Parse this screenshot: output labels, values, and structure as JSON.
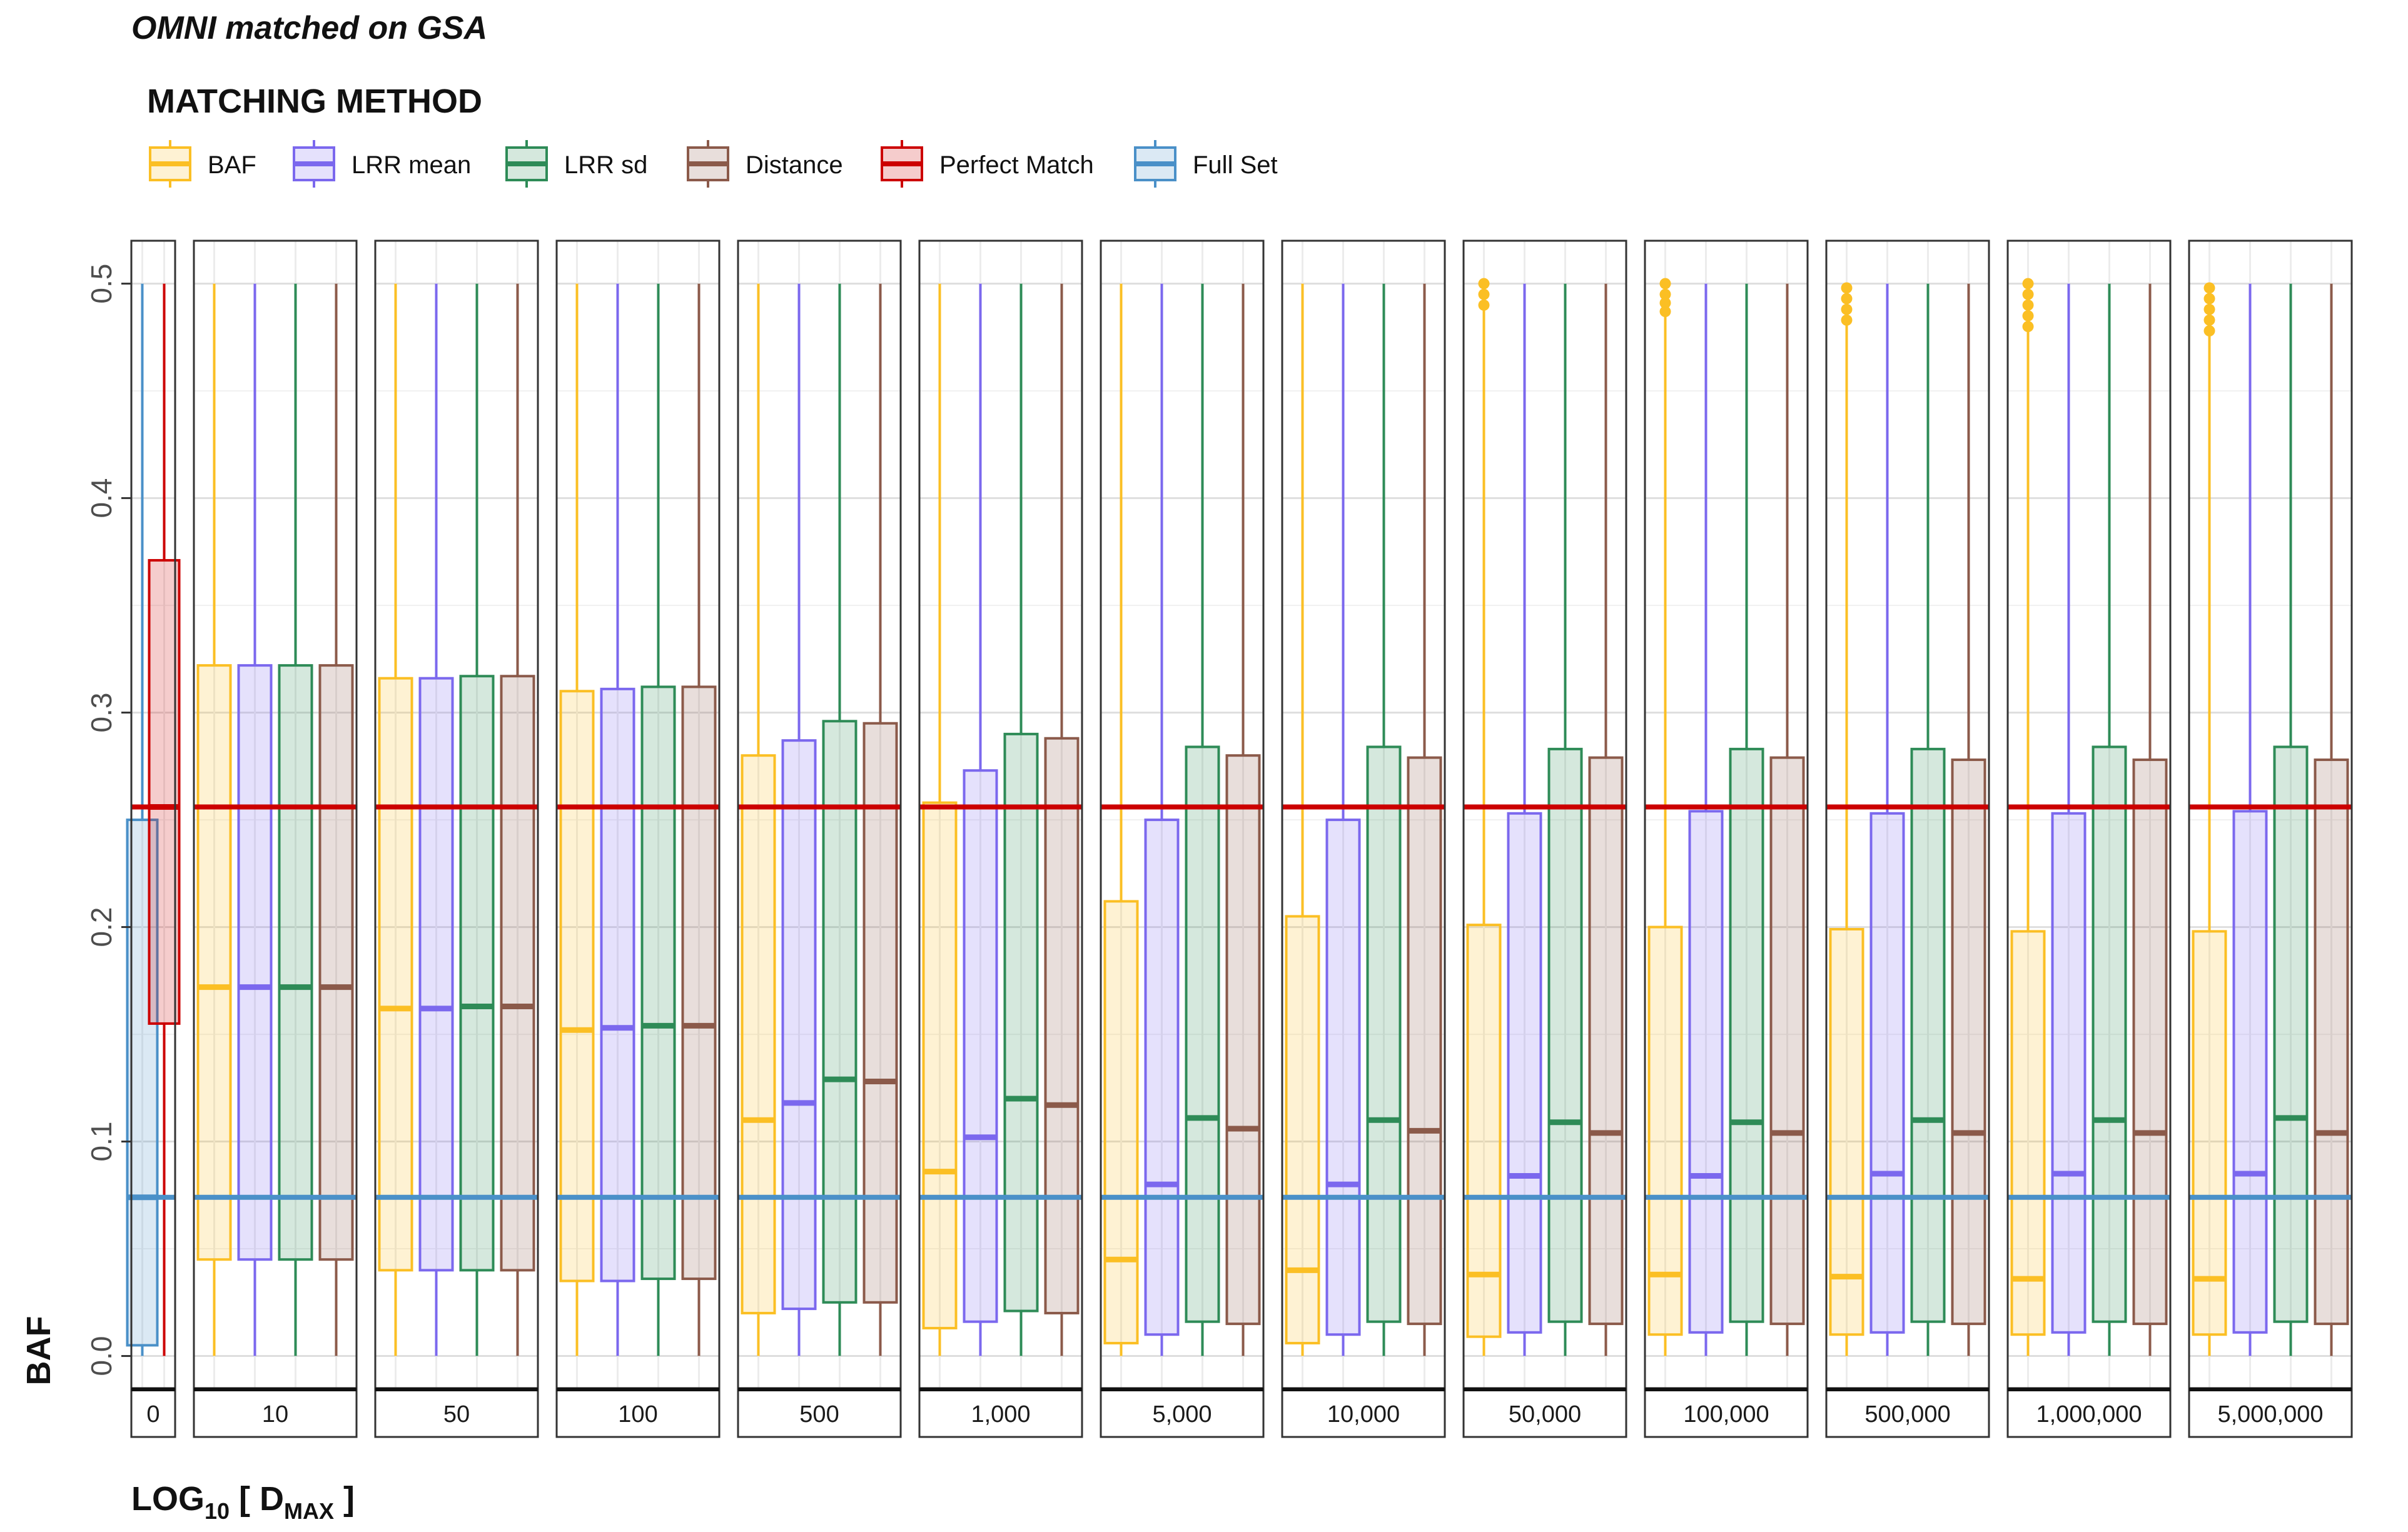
{
  "chart_data": {
    "type": "boxplot",
    "title": "OMNI matched on GSA",
    "legend": {
      "title": "MATCHING METHOD",
      "placement": "top-left",
      "items": [
        {
          "name": "BAF",
          "color": "#FBBF24"
        },
        {
          "name": "LRR mean",
          "color": "#7B68EE"
        },
        {
          "name": "LRR sd",
          "color": "#2E8B57"
        },
        {
          "name": "Distance",
          "color": "#8B5A4A"
        },
        {
          "name": "Perfect Match",
          "color": "#CC0000"
        },
        {
          "name": "Full Set",
          "color": "#4A90C8"
        }
      ]
    },
    "ylabel": "BAF",
    "xlabel": {
      "base": "LOG",
      "sub1": "10",
      "mid": " [ D",
      "sub2": "MAX",
      "end": " ]"
    },
    "ylim": [
      -0.015,
      0.52
    ],
    "yticks": [
      0.0,
      0.1,
      0.2,
      0.3,
      0.4,
      0.5
    ],
    "ytick_labels": [
      "0.0",
      "0.1",
      "0.2",
      "0.3",
      "0.4",
      "0.5"
    ],
    "grid": true,
    "reference_lines": [
      {
        "name": "Perfect Match",
        "y": 0.256,
        "color": "#CC0000"
      },
      {
        "name": "Full Set",
        "y": 0.074,
        "color": "#4A90C8"
      }
    ],
    "panels": [
      {
        "label": "0",
        "boxes": [
          {
            "series": "Full Set",
            "min": 0.0,
            "q1": 0.005,
            "median": 0.074,
            "q3": 0.25,
            "max": 0.5,
            "outliers": []
          },
          {
            "series": "Perfect Match",
            "min": 0.0,
            "q1": 0.155,
            "median": 0.256,
            "q3": 0.371,
            "max": 0.5,
            "outliers": []
          }
        ]
      },
      {
        "label": "10",
        "boxes": [
          {
            "series": "BAF",
            "min": 0.0,
            "q1": 0.045,
            "median": 0.172,
            "q3": 0.322,
            "max": 0.5,
            "outliers": []
          },
          {
            "series": "LRR mean",
            "min": 0.0,
            "q1": 0.045,
            "median": 0.172,
            "q3": 0.322,
            "max": 0.5,
            "outliers": []
          },
          {
            "series": "LRR sd",
            "min": 0.0,
            "q1": 0.045,
            "median": 0.172,
            "q3": 0.322,
            "max": 0.5,
            "outliers": []
          },
          {
            "series": "Distance",
            "min": 0.0,
            "q1": 0.045,
            "median": 0.172,
            "q3": 0.322,
            "max": 0.5,
            "outliers": []
          }
        ]
      },
      {
        "label": "50",
        "boxes": [
          {
            "series": "BAF",
            "min": 0.0,
            "q1": 0.04,
            "median": 0.162,
            "q3": 0.316,
            "max": 0.5,
            "outliers": []
          },
          {
            "series": "LRR mean",
            "min": 0.0,
            "q1": 0.04,
            "median": 0.162,
            "q3": 0.316,
            "max": 0.5,
            "outliers": []
          },
          {
            "series": "LRR sd",
            "min": 0.0,
            "q1": 0.04,
            "median": 0.163,
            "q3": 0.317,
            "max": 0.5,
            "outliers": []
          },
          {
            "series": "Distance",
            "min": 0.0,
            "q1": 0.04,
            "median": 0.163,
            "q3": 0.317,
            "max": 0.5,
            "outliers": []
          }
        ]
      },
      {
        "label": "100",
        "boxes": [
          {
            "series": "BAF",
            "min": 0.0,
            "q1": 0.035,
            "median": 0.152,
            "q3": 0.31,
            "max": 0.5,
            "outliers": []
          },
          {
            "series": "LRR mean",
            "min": 0.0,
            "q1": 0.035,
            "median": 0.153,
            "q3": 0.311,
            "max": 0.5,
            "outliers": []
          },
          {
            "series": "LRR sd",
            "min": 0.0,
            "q1": 0.036,
            "median": 0.154,
            "q3": 0.312,
            "max": 0.5,
            "outliers": []
          },
          {
            "series": "Distance",
            "min": 0.0,
            "q1": 0.036,
            "median": 0.154,
            "q3": 0.312,
            "max": 0.5,
            "outliers": []
          }
        ]
      },
      {
        "label": "500",
        "boxes": [
          {
            "series": "BAF",
            "min": 0.0,
            "q1": 0.02,
            "median": 0.11,
            "q3": 0.28,
            "max": 0.5,
            "outliers": []
          },
          {
            "series": "LRR mean",
            "min": 0.0,
            "q1": 0.022,
            "median": 0.118,
            "q3": 0.287,
            "max": 0.5,
            "outliers": []
          },
          {
            "series": "LRR sd",
            "min": 0.0,
            "q1": 0.025,
            "median": 0.129,
            "q3": 0.296,
            "max": 0.5,
            "outliers": []
          },
          {
            "series": "Distance",
            "min": 0.0,
            "q1": 0.025,
            "median": 0.128,
            "q3": 0.295,
            "max": 0.5,
            "outliers": []
          }
        ]
      },
      {
        "label": "1,000",
        "boxes": [
          {
            "series": "BAF",
            "min": 0.0,
            "q1": 0.013,
            "median": 0.086,
            "q3": 0.258,
            "max": 0.5,
            "outliers": []
          },
          {
            "series": "LRR mean",
            "min": 0.0,
            "q1": 0.016,
            "median": 0.102,
            "q3": 0.273,
            "max": 0.5,
            "outliers": []
          },
          {
            "series": "LRR sd",
            "min": 0.0,
            "q1": 0.021,
            "median": 0.12,
            "q3": 0.29,
            "max": 0.5,
            "outliers": []
          },
          {
            "series": "Distance",
            "min": 0.0,
            "q1": 0.02,
            "median": 0.117,
            "q3": 0.288,
            "max": 0.5,
            "outliers": []
          }
        ]
      },
      {
        "label": "5,000",
        "boxes": [
          {
            "series": "BAF",
            "min": 0.0,
            "q1": 0.006,
            "median": 0.045,
            "q3": 0.212,
            "max": 0.5,
            "outliers": []
          },
          {
            "series": "LRR mean",
            "min": 0.0,
            "q1": 0.01,
            "median": 0.08,
            "q3": 0.25,
            "max": 0.5,
            "outliers": []
          },
          {
            "series": "LRR sd",
            "min": 0.0,
            "q1": 0.016,
            "median": 0.111,
            "q3": 0.284,
            "max": 0.5,
            "outliers": []
          },
          {
            "series": "Distance",
            "min": 0.0,
            "q1": 0.015,
            "median": 0.106,
            "q3": 0.28,
            "max": 0.5,
            "outliers": []
          }
        ]
      },
      {
        "label": "10,000",
        "boxes": [
          {
            "series": "BAF",
            "min": 0.0,
            "q1": 0.006,
            "median": 0.04,
            "q3": 0.205,
            "max": 0.5,
            "outliers": []
          },
          {
            "series": "LRR mean",
            "min": 0.0,
            "q1": 0.01,
            "median": 0.08,
            "q3": 0.25,
            "max": 0.5,
            "outliers": []
          },
          {
            "series": "LRR sd",
            "min": 0.0,
            "q1": 0.016,
            "median": 0.11,
            "q3": 0.284,
            "max": 0.5,
            "outliers": []
          },
          {
            "series": "Distance",
            "min": 0.0,
            "q1": 0.015,
            "median": 0.105,
            "q3": 0.279,
            "max": 0.5,
            "outliers": []
          }
        ]
      },
      {
        "label": "50,000",
        "boxes": [
          {
            "series": "BAF",
            "min": 0.0,
            "q1": 0.009,
            "median": 0.038,
            "q3": 0.201,
            "max": 0.488,
            "outliers": [
              0.49,
              0.495,
              0.5
            ]
          },
          {
            "series": "LRR mean",
            "min": 0.0,
            "q1": 0.011,
            "median": 0.084,
            "q3": 0.253,
            "max": 0.5,
            "outliers": []
          },
          {
            "series": "LRR sd",
            "min": 0.0,
            "q1": 0.016,
            "median": 0.109,
            "q3": 0.283,
            "max": 0.5,
            "outliers": []
          },
          {
            "series": "Distance",
            "min": 0.0,
            "q1": 0.015,
            "median": 0.104,
            "q3": 0.279,
            "max": 0.5,
            "outliers": []
          }
        ]
      },
      {
        "label": "100,000",
        "boxes": [
          {
            "series": "BAF",
            "min": 0.0,
            "q1": 0.01,
            "median": 0.038,
            "q3": 0.2,
            "max": 0.485,
            "outliers": [
              0.487,
              0.491,
              0.495,
              0.5
            ]
          },
          {
            "series": "LRR mean",
            "min": 0.0,
            "q1": 0.011,
            "median": 0.084,
            "q3": 0.254,
            "max": 0.5,
            "outliers": []
          },
          {
            "series": "LRR sd",
            "min": 0.0,
            "q1": 0.016,
            "median": 0.109,
            "q3": 0.283,
            "max": 0.5,
            "outliers": []
          },
          {
            "series": "Distance",
            "min": 0.0,
            "q1": 0.015,
            "median": 0.104,
            "q3": 0.279,
            "max": 0.5,
            "outliers": []
          }
        ]
      },
      {
        "label": "500,000",
        "boxes": [
          {
            "series": "BAF",
            "min": 0.0,
            "q1": 0.01,
            "median": 0.037,
            "q3": 0.199,
            "max": 0.481,
            "outliers": [
              0.483,
              0.488,
              0.493,
              0.498
            ]
          },
          {
            "series": "LRR mean",
            "min": 0.0,
            "q1": 0.011,
            "median": 0.085,
            "q3": 0.253,
            "max": 0.5,
            "outliers": []
          },
          {
            "series": "LRR sd",
            "min": 0.0,
            "q1": 0.016,
            "median": 0.11,
            "q3": 0.283,
            "max": 0.5,
            "outliers": []
          },
          {
            "series": "Distance",
            "min": 0.0,
            "q1": 0.015,
            "median": 0.104,
            "q3": 0.278,
            "max": 0.5,
            "outliers": []
          }
        ]
      },
      {
        "label": "1,000,000",
        "boxes": [
          {
            "series": "BAF",
            "min": 0.0,
            "q1": 0.01,
            "median": 0.036,
            "q3": 0.198,
            "max": 0.478,
            "outliers": [
              0.48,
              0.485,
              0.49,
              0.495,
              0.5
            ]
          },
          {
            "series": "LRR mean",
            "min": 0.0,
            "q1": 0.011,
            "median": 0.085,
            "q3": 0.253,
            "max": 0.5,
            "outliers": []
          },
          {
            "series": "LRR sd",
            "min": 0.0,
            "q1": 0.016,
            "median": 0.11,
            "q3": 0.284,
            "max": 0.5,
            "outliers": []
          },
          {
            "series": "Distance",
            "min": 0.0,
            "q1": 0.015,
            "median": 0.104,
            "q3": 0.278,
            "max": 0.5,
            "outliers": []
          }
        ]
      },
      {
        "label": "5,000,000",
        "boxes": [
          {
            "series": "BAF",
            "min": 0.0,
            "q1": 0.01,
            "median": 0.036,
            "q3": 0.198,
            "max": 0.476,
            "outliers": [
              0.478,
              0.483,
              0.488,
              0.493,
              0.498
            ]
          },
          {
            "series": "LRR mean",
            "min": 0.0,
            "q1": 0.011,
            "median": 0.085,
            "q3": 0.254,
            "max": 0.5,
            "outliers": []
          },
          {
            "series": "LRR sd",
            "min": 0.0,
            "q1": 0.016,
            "median": 0.111,
            "q3": 0.284,
            "max": 0.5,
            "outliers": []
          },
          {
            "series": "Distance",
            "min": 0.0,
            "q1": 0.015,
            "median": 0.104,
            "q3": 0.278,
            "max": 0.5,
            "outliers": []
          }
        ]
      }
    ]
  }
}
